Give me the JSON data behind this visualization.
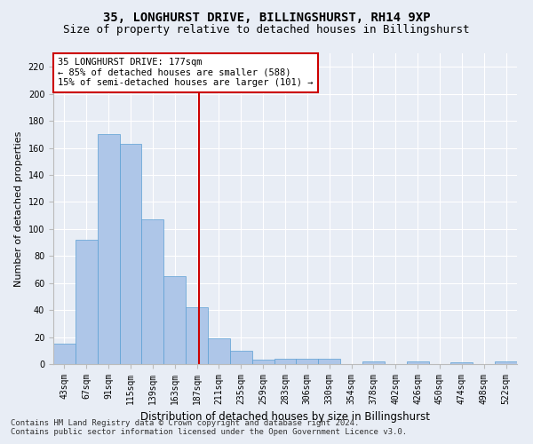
{
  "title": "35, LONGHURST DRIVE, BILLINGSHURST, RH14 9XP",
  "subtitle": "Size of property relative to detached houses in Billingshurst",
  "xlabel": "Distribution of detached houses by size in Billingshurst",
  "ylabel": "Number of detached properties",
  "footnote1": "Contains HM Land Registry data © Crown copyright and database right 2024.",
  "footnote2": "Contains public sector information licensed under the Open Government Licence v3.0.",
  "annotation_line1": "35 LONGHURST DRIVE: 177sqm",
  "annotation_line2": "← 85% of detached houses are smaller (588)",
  "annotation_line3": "15% of semi-detached houses are larger (101) →",
  "bar_labels": [
    "43sqm",
    "67sqm",
    "91sqm",
    "115sqm",
    "139sqm",
    "163sqm",
    "187sqm",
    "211sqm",
    "235sqm",
    "259sqm",
    "283sqm",
    "306sqm",
    "330sqm",
    "354sqm",
    "378sqm",
    "402sqm",
    "426sqm",
    "450sqm",
    "474sqm",
    "498sqm",
    "522sqm"
  ],
  "bar_values": [
    15,
    92,
    170,
    163,
    107,
    65,
    42,
    19,
    10,
    3,
    4,
    4,
    4,
    0,
    2,
    0,
    2,
    0,
    1,
    0,
    2
  ],
  "bar_color": "#aec6e8",
  "bar_edge_color": "#5a9fd4",
  "ylim": [
    0,
    230
  ],
  "yticks": [
    0,
    20,
    40,
    60,
    80,
    100,
    120,
    140,
    160,
    180,
    200,
    220
  ],
  "bg_color": "#e8edf5",
  "plot_bg_color": "#e8edf5",
  "grid_color": "#ffffff",
  "annotation_box_color": "#ffffff",
  "annotation_box_edge": "#cc0000",
  "ref_line_color": "#cc0000",
  "title_fontsize": 10,
  "subtitle_fontsize": 9,
  "xlabel_fontsize": 8.5,
  "ylabel_fontsize": 8,
  "tick_fontsize": 7,
  "annotation_fontsize": 7.5,
  "footnote_fontsize": 6.5
}
